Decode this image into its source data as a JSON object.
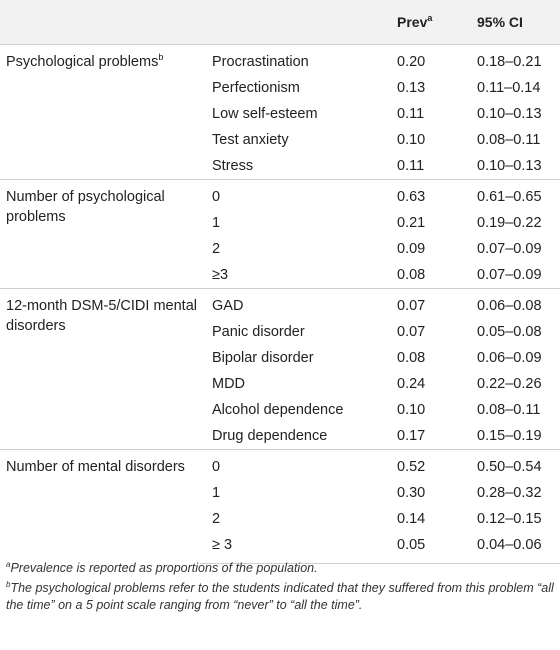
{
  "header": {
    "col1": "",
    "col2": "",
    "prev": "Prev",
    "prev_sup": "a",
    "ci": "95% CI"
  },
  "groups": [
    {
      "category": "Psychological problems",
      "category_sup": "b",
      "rows": [
        {
          "item": "Procrastination",
          "prev": "0.20",
          "ci": "0.18–0.21"
        },
        {
          "item": "Perfectionism",
          "prev": "0.13",
          "ci": "0.11–0.14"
        },
        {
          "item": "Low self-esteem",
          "prev": "0.11",
          "ci": "0.10–0.13"
        },
        {
          "item": "Test anxiety",
          "prev": "0.10",
          "ci": "0.08–0.11"
        },
        {
          "item": "Stress",
          "prev": "0.11",
          "ci": "0.10–0.13"
        }
      ]
    },
    {
      "category": "Number of psychological problems",
      "category_sup": "",
      "rows": [
        {
          "item": "0",
          "prev": "0.63",
          "ci": "0.61–0.65"
        },
        {
          "item": "1",
          "prev": "0.21",
          "ci": "0.19–0.22"
        },
        {
          "item": "2",
          "prev": "0.09",
          "ci": "0.07–0.09"
        },
        {
          "item": "≥3",
          "prev": "0.08",
          "ci": "0.07–0.09"
        }
      ]
    },
    {
      "category": "12-month DSM-5/CIDI mental disorders",
      "category_sup": "",
      "rows": [
        {
          "item": "GAD",
          "prev": "0.07",
          "ci": "0.06–0.08"
        },
        {
          "item": "Panic disorder",
          "prev": "0.07",
          "ci": "0.05–0.08"
        },
        {
          "item": "Bipolar disorder",
          "prev": "0.08",
          "ci": "0.06–0.09"
        },
        {
          "item": "MDD",
          "prev": "0.24",
          "ci": "0.22–0.26"
        },
        {
          "item": "Alcohol dependence",
          "prev": "0.10",
          "ci": "0.08–0.11"
        },
        {
          "item": "Drug dependence",
          "prev": "0.17",
          "ci": "0.15–0.19"
        }
      ]
    },
    {
      "category": "Number of mental disorders",
      "category_sup": "",
      "rows": [
        {
          "item": "0",
          "prev": "0.52",
          "ci": "0.50–0.54"
        },
        {
          "item": "1",
          "prev": "0.30",
          "ci": "0.28–0.32"
        },
        {
          "item": "2",
          "prev": "0.14",
          "ci": "0.12–0.15"
        },
        {
          "item": "≥ 3",
          "prev": "0.05",
          "ci": "0.04–0.06"
        }
      ]
    }
  ],
  "footnotes": [
    {
      "mark": "a",
      "text": "Prevalence is reported as proportions of the population."
    },
    {
      "mark": "b",
      "text": "The psychological problems refer to the students indicated that they suffered from this problem “all the time” on a 5 point scale ranging from “never” to “all the time”."
    }
  ]
}
